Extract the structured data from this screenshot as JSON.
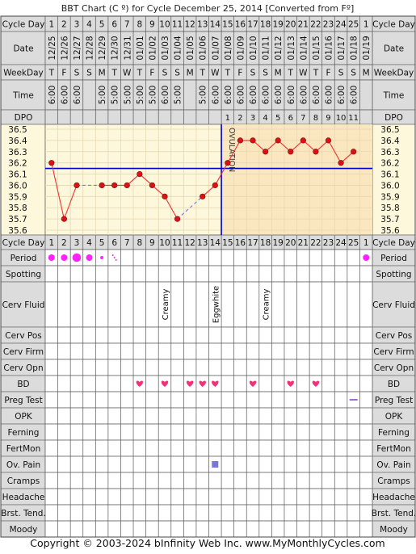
{
  "title": "BBT Chart (C º) for Cycle December 25, 2014  [Converted from Fº]",
  "footer": "Copyright © 2003-2024 bInfinity Web Inc.    www.MyMonthlyCycles.com",
  "colors": {
    "header_bg": "#dcdcdc",
    "grid_bg": "#fdf7dc",
    "post_ovulation_bg": "#fae6bf",
    "temp_line": "#ee3333",
    "temp_point": "#dd1111",
    "coverline": "#0000cc",
    "ovulation_line": "#0000cc",
    "period": "#ff22ff",
    "bd_heart": "#ee3377",
    "pain_square": "#7777dd",
    "preg_test": "#8844cc"
  },
  "row_labels": {
    "cycle_day": "Cycle Day",
    "date": "Date",
    "weekday": "WeekDay",
    "time": "Time",
    "dpo": "DPO",
    "period": "Period",
    "spotting": "Spotting",
    "cerv_fluid": "Cerv Fluid",
    "cerv_pos": "Cerv Pos",
    "cerv_firm": "Cerv Firm",
    "cerv_opn": "Cerv Opn",
    "bd": "BD",
    "preg_test": "Preg Test",
    "opk": "OPK",
    "ferning": "Ferning",
    "fertmon": "FertMon",
    "ov_pain": "Ov. Pain",
    "cramps": "Cramps",
    "headache": "Headache",
    "brst_tend": "Brst. Tend.",
    "moody": "Moody"
  },
  "ovulation_label": "OVULATION",
  "chart_data": {
    "type": "line",
    "title": "BBT Chart (C º) for Cycle December 25, 2014  [Converted from Fº]",
    "cycle_days": [
      "1",
      "2",
      "3",
      "4",
      "5",
      "6",
      "7",
      "8",
      "9",
      "10",
      "11",
      "12",
      "13",
      "14",
      "15",
      "16",
      "17",
      "18",
      "19",
      "20",
      "21",
      "22",
      "23",
      "24",
      "25",
      "1"
    ],
    "dates": [
      "12/25",
      "12/26",
      "12/27",
      "12/28",
      "12/29",
      "12/30",
      "12/31",
      "01/01",
      "01/02",
      "01/03",
      "01/04",
      "01/05",
      "01/06",
      "01/07",
      "01/08",
      "01/09",
      "01/10",
      "01/11",
      "01/12",
      "01/13",
      "01/14",
      "01/15",
      "01/16",
      "01/17",
      "01/18",
      "01/19"
    ],
    "weekdays": [
      "T",
      "F",
      "S",
      "S",
      "M",
      "T",
      "W",
      "T",
      "F",
      "S",
      "S",
      "M",
      "T",
      "W",
      "T",
      "F",
      "S",
      "S",
      "M",
      "T",
      "W",
      "T",
      "F",
      "S",
      "S",
      "M"
    ],
    "times": [
      "6:00",
      "6:00",
      "6:00",
      "",
      "5:00",
      "5:00",
      "5:00",
      "5:00",
      "5:00",
      "6:00",
      "5:00",
      "",
      "5:00",
      "6:00",
      "6:00",
      "6:00",
      "6:00",
      "6:00",
      "6:00",
      "6:00",
      "6:00",
      "6:00",
      "6:00",
      "6:00",
      "6:00",
      ""
    ],
    "dpo": [
      "",
      "",
      "",
      "",
      "",
      "",
      "",
      "",
      "",
      "",
      "",
      "",
      "",
      "",
      "1",
      "2",
      "3",
      "4",
      "5",
      "6",
      "7",
      "8",
      "9",
      "10",
      "11",
      ""
    ],
    "y_ticks": [
      "36.5",
      "36.4",
      "36.3",
      "36.2",
      "36.1",
      "36.0",
      "35.9",
      "35.8",
      "35.7",
      "35.6"
    ],
    "ylim": [
      35.6,
      36.5
    ],
    "temperatures": [
      36.2,
      35.7,
      36.0,
      null,
      36.0,
      36.0,
      36.0,
      36.1,
      36.0,
      35.9,
      35.7,
      null,
      35.9,
      36.0,
      36.2,
      36.4,
      36.4,
      36.3,
      36.4,
      36.3,
      36.4,
      36.3,
      36.4,
      36.2,
      36.3,
      null
    ],
    "coverline": 36.15,
    "ovulation_after_day_index": 13,
    "period": [
      2,
      2,
      3,
      2,
      1,
      0.5,
      0,
      0,
      0,
      0,
      0,
      0,
      0,
      0,
      0,
      0,
      0,
      0,
      0,
      0,
      0,
      0,
      0,
      0,
      0,
      2
    ],
    "cerv_fluid": {
      "9": "Creamy",
      "13": "Eggwhite",
      "17": "Creamy"
    },
    "bd_day_indices": [
      7,
      9,
      11,
      12,
      13,
      16,
      19,
      21
    ],
    "ov_pain_day_indices": [
      13
    ],
    "preg_test_day_indices": [
      24
    ]
  }
}
